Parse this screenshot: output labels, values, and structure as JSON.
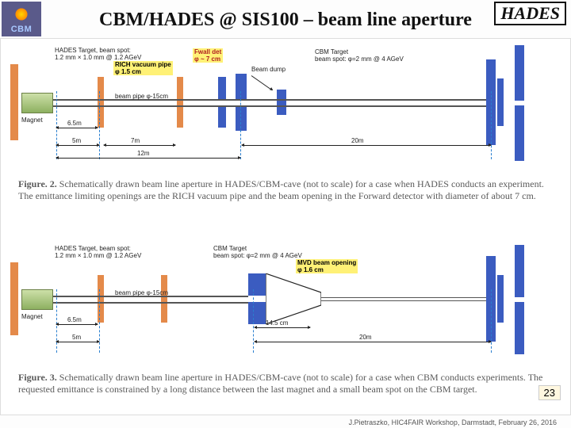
{
  "logos": {
    "left_label": "CBM",
    "right_label": "HADES"
  },
  "title": "CBM/HADES @ SIS100 – beam line aperture",
  "figure2": {
    "caption_bold": "Figure. 2.",
    "caption_text": " Schematically drawn beam line aperture in HADES/CBM-cave (not to scale) for a case when HADES conducts an experiment. The emittance limiting openings are the RICH vacuum pipe and the beam opening in the Forward detector with diameter of about 7 cm.",
    "lbl_target": "HADES Target, beam spot:\n1.2 mm × 1.0 mm  @ 1.2 AGeV",
    "lbl_rich": "RICH vacuum pipe\nφ 1.5 cm",
    "lbl_fwall": "Fwall det\nφ ~ 7 cm",
    "lbl_beampipe": "beam pipe φ-15cm",
    "lbl_beamdump": "Beam dump",
    "lbl_cbmtarget": "CBM Target\nbeam spot: φ=2 mm  @ 4 AGeV",
    "lbl_magnet": "Magnet",
    "dims": {
      "d1": "6.5m",
      "d2": "5m",
      "d3": "7m",
      "d4": "12m",
      "d5": "20m"
    },
    "colors": {
      "cbm": "#3b5cc0",
      "hades": "#e48a4a",
      "magnet": "#8db060",
      "pipe": "#555",
      "hl": "#fff176"
    }
  },
  "figure3": {
    "caption_bold": "Figure. 3.",
    "caption_text": " Schematically drawn beam line aperture in HADES/CBM-cave (not to scale) for a case when CBM conducts experiments. The requested emittance is constrained by a long distance between the last magnet and a small beam spot on the CBM target.",
    "lbl_target": "HADES Target, beam spot:\n1.2 mm × 1.0 mm  @ 1.2 AGeV",
    "lbl_cbmtarget": "CBM Target\nbeam spot: φ=2 mm  @ 4 AGeV",
    "lbl_mvd": "MVD beam opening\nφ 1.6 cm",
    "lbl_beampipe": "beam pipe φ-15cm",
    "lbl_magnet": "Magnet",
    "dims": {
      "d1": "6.5m",
      "d2": "5m",
      "d3": "14.5 cm",
      "d4": "20m"
    }
  },
  "page_number": "23",
  "footer": "J.Pietraszko, HIC4FAIR Workshop, Darmstadt, February 26, 2016"
}
